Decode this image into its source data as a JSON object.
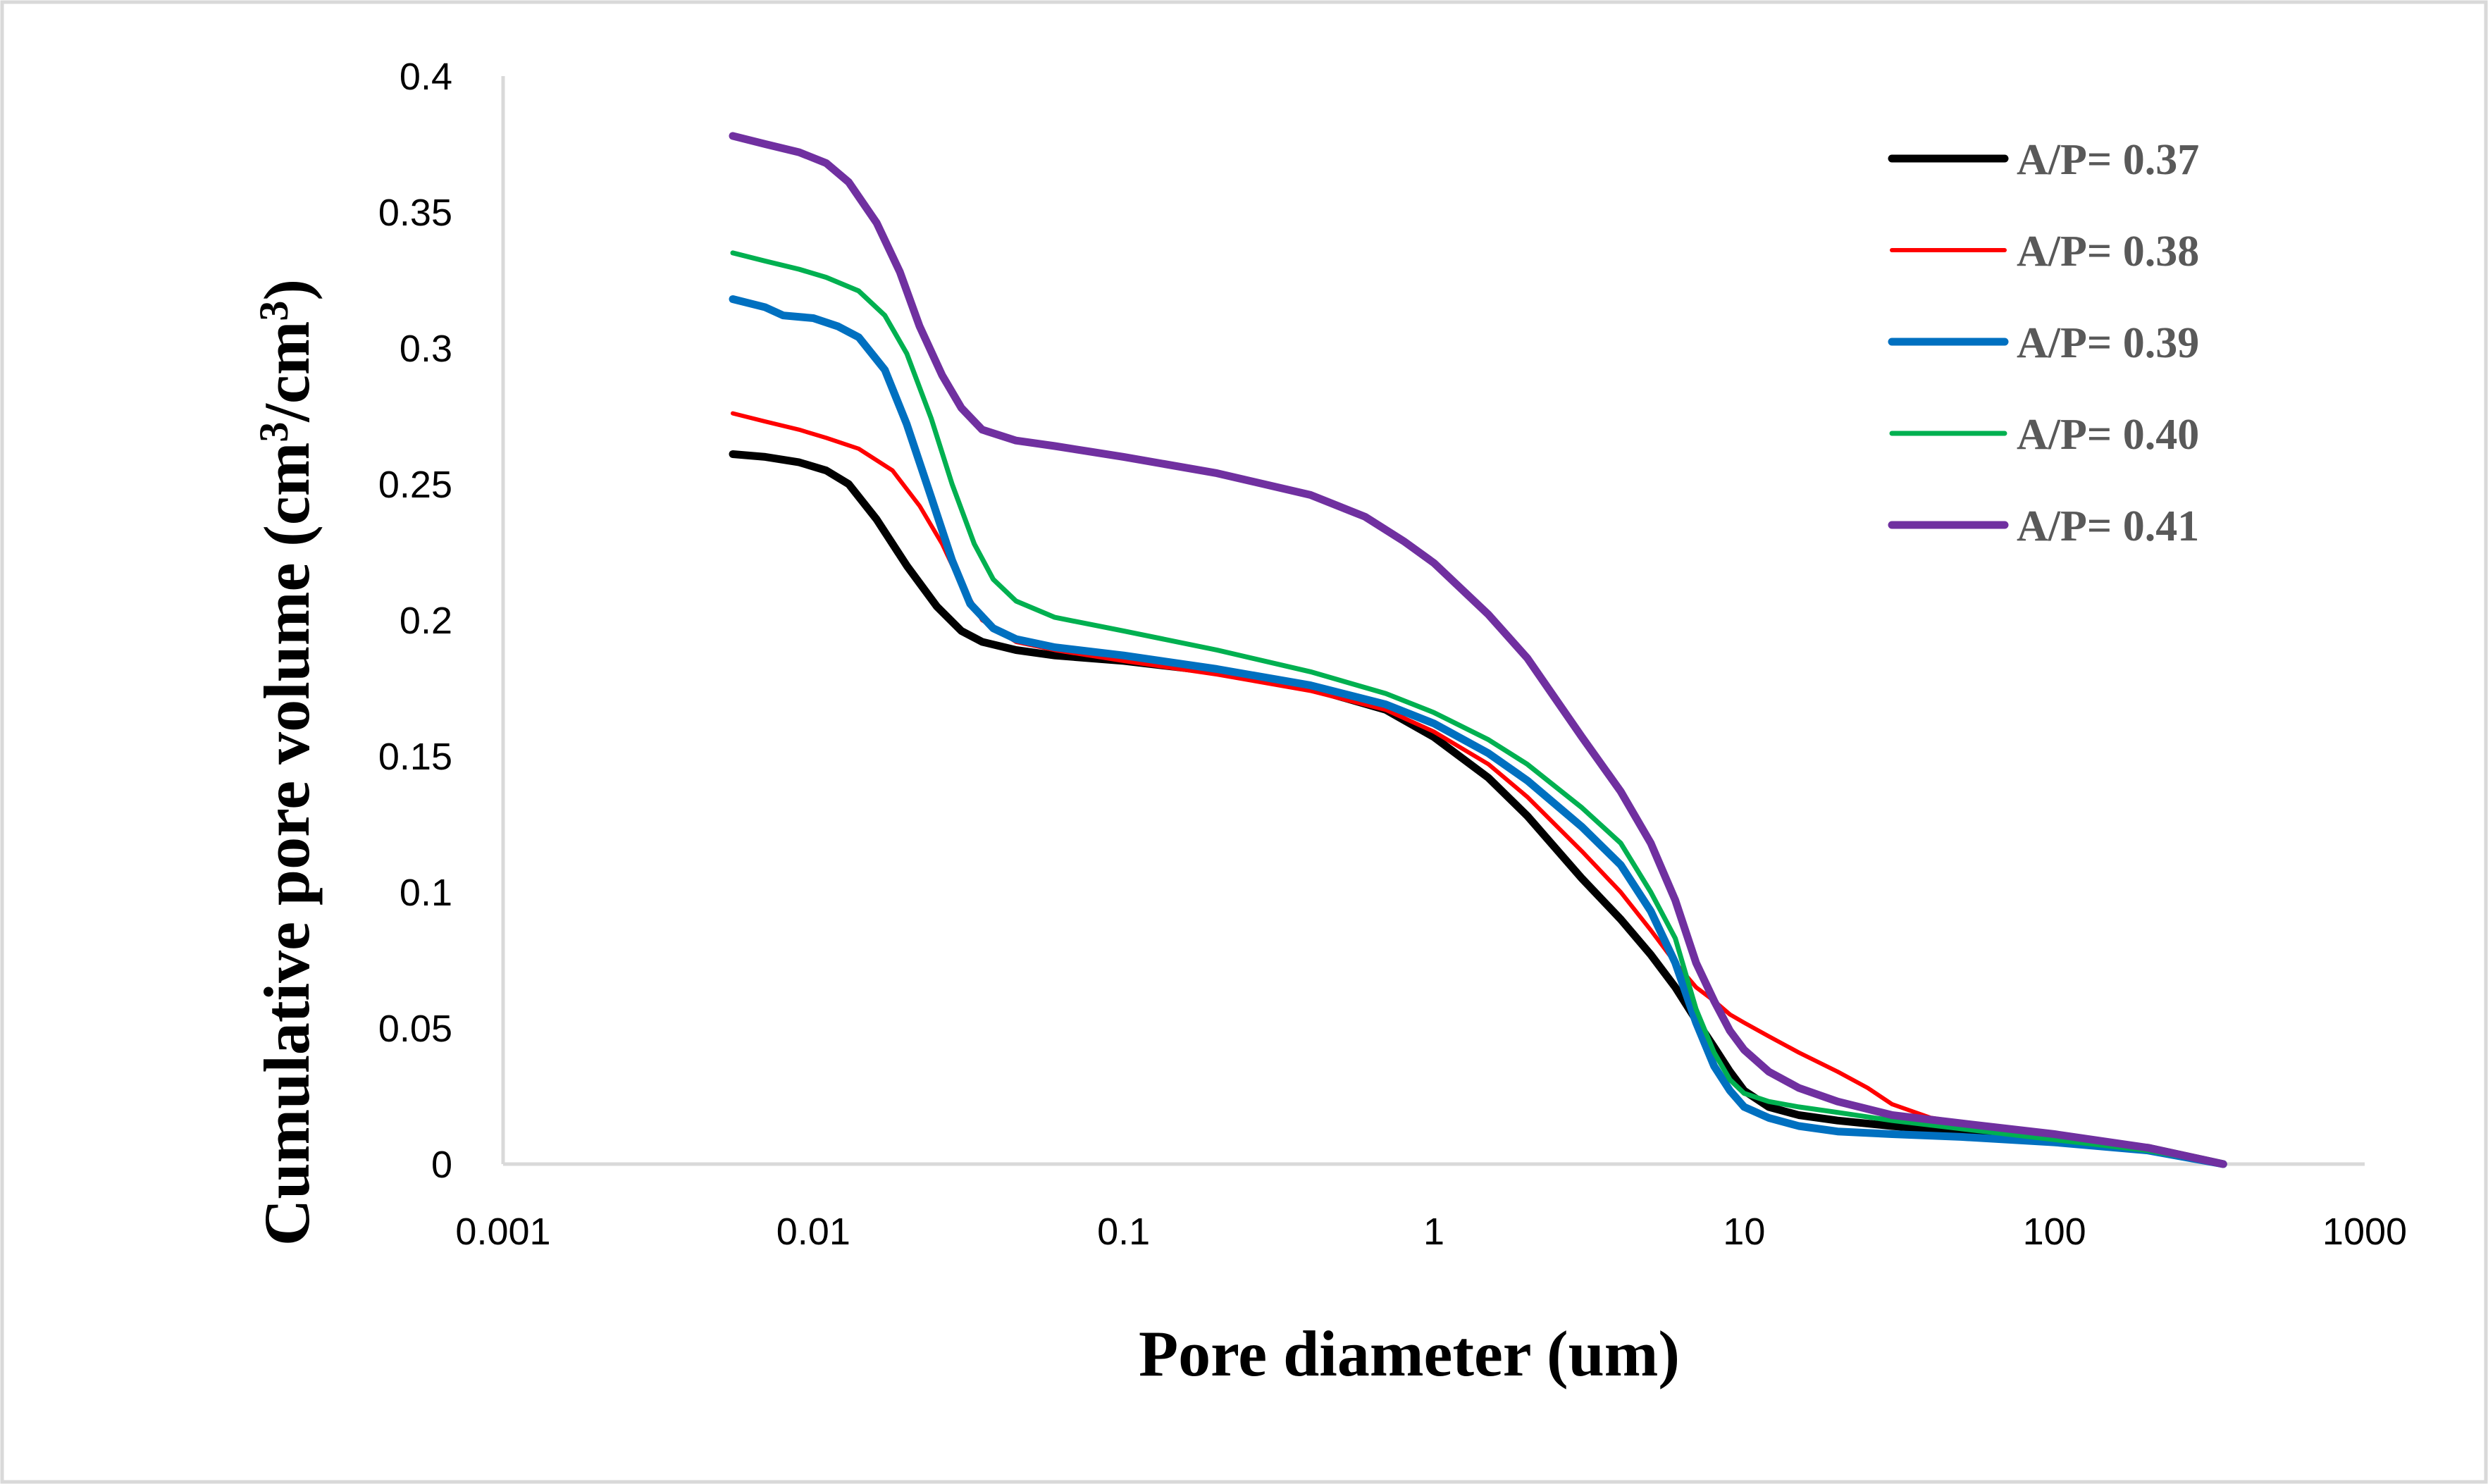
{
  "chart_data": {
    "type": "line",
    "title": "",
    "xlabel": "Pore diameter (um)",
    "ylabel": "Cumulative pore volume (cm³/cm³)",
    "ylabel_parts": {
      "a": "Cumulative pore volume (cm",
      "sup1": "3",
      "b": "/cm",
      "sup2": "3",
      "c": ")"
    },
    "xscale": "log",
    "xlim": [
      0.001,
      1000
    ],
    "ylim": [
      0,
      0.4
    ],
    "grid": false,
    "legend_position": "top-right",
    "x_tick_labels": [
      "0.001",
      "0.01",
      "0.1",
      "1",
      "10",
      "100",
      "1000"
    ],
    "y_tick_labels": [
      "0",
      "0.05",
      "0.1",
      "0.15",
      "0.2",
      "0.25",
      "0.3",
      "0.35",
      "0.4"
    ],
    "series": [
      {
        "name": "A/P=   0.37",
        "color": "#000000",
        "points": [
          [
            0.0055,
            0.261
          ],
          [
            0.007,
            0.26
          ],
          [
            0.009,
            0.258
          ],
          [
            0.011,
            0.255
          ],
          [
            0.013,
            0.25
          ],
          [
            0.016,
            0.237
          ],
          [
            0.02,
            0.22
          ],
          [
            0.025,
            0.205
          ],
          [
            0.03,
            0.196
          ],
          [
            0.035,
            0.192
          ],
          [
            0.045,
            0.189
          ],
          [
            0.06,
            0.187
          ],
          [
            0.1,
            0.185
          ],
          [
            0.2,
            0.181
          ],
          [
            0.4,
            0.175
          ],
          [
            0.7,
            0.167
          ],
          [
            1.0,
            0.157
          ],
          [
            1.5,
            0.142
          ],
          [
            2.0,
            0.128
          ],
          [
            3.0,
            0.105
          ],
          [
            4.0,
            0.09
          ],
          [
            5.0,
            0.077
          ],
          [
            6.0,
            0.065
          ],
          [
            7.0,
            0.053
          ],
          [
            8.0,
            0.043
          ],
          [
            9.0,
            0.034
          ],
          [
            10.0,
            0.027
          ],
          [
            12.0,
            0.021
          ],
          [
            15.0,
            0.018
          ],
          [
            20.0,
            0.016
          ],
          [
            30.0,
            0.014
          ],
          [
            50.0,
            0.012
          ],
          [
            100.0,
            0.009
          ],
          [
            200.0,
            0.006
          ],
          [
            350.0,
            0.0
          ]
        ]
      },
      {
        "name": "A/P=   0.38",
        "color": "#ff0000",
        "points": [
          [
            0.0055,
            0.276
          ],
          [
            0.007,
            0.273
          ],
          [
            0.009,
            0.27
          ],
          [
            0.011,
            0.267
          ],
          [
            0.014,
            0.263
          ],
          [
            0.018,
            0.255
          ],
          [
            0.022,
            0.242
          ],
          [
            0.026,
            0.228
          ],
          [
            0.03,
            0.213
          ],
          [
            0.035,
            0.2
          ],
          [
            0.045,
            0.192
          ],
          [
            0.06,
            0.189
          ],
          [
            0.1,
            0.185
          ],
          [
            0.2,
            0.18
          ],
          [
            0.4,
            0.174
          ],
          [
            0.7,
            0.167
          ],
          [
            1.0,
            0.159
          ],
          [
            1.5,
            0.147
          ],
          [
            2.0,
            0.135
          ],
          [
            3.0,
            0.115
          ],
          [
            4.0,
            0.1
          ],
          [
            5.0,
            0.086
          ],
          [
            6.0,
            0.074
          ],
          [
            7.0,
            0.065
          ],
          [
            8.0,
            0.06
          ],
          [
            9.0,
            0.055
          ],
          [
            10.0,
            0.052
          ],
          [
            12.0,
            0.047
          ],
          [
            15.0,
            0.041
          ],
          [
            20.0,
            0.034
          ],
          [
            25.0,
            0.028
          ],
          [
            30.0,
            0.022
          ],
          [
            40.0,
            0.017
          ],
          [
            60.0,
            0.014
          ],
          [
            100.0,
            0.011
          ],
          [
            200.0,
            0.006
          ],
          [
            350.0,
            0.0
          ]
        ]
      },
      {
        "name": "A/P=   0.39",
        "color": "#0070c0",
        "points": [
          [
            0.0055,
            0.318
          ],
          [
            0.007,
            0.315
          ],
          [
            0.008,
            0.312
          ],
          [
            0.01,
            0.311
          ],
          [
            0.012,
            0.308
          ],
          [
            0.014,
            0.304
          ],
          [
            0.017,
            0.292
          ],
          [
            0.02,
            0.272
          ],
          [
            0.024,
            0.245
          ],
          [
            0.028,
            0.222
          ],
          [
            0.032,
            0.206
          ],
          [
            0.038,
            0.197
          ],
          [
            0.045,
            0.193
          ],
          [
            0.06,
            0.19
          ],
          [
            0.1,
            0.187
          ],
          [
            0.2,
            0.182
          ],
          [
            0.4,
            0.176
          ],
          [
            0.7,
            0.169
          ],
          [
            1.0,
            0.162
          ],
          [
            1.5,
            0.151
          ],
          [
            2.0,
            0.141
          ],
          [
            3.0,
            0.124
          ],
          [
            4.0,
            0.11
          ],
          [
            5.0,
            0.093
          ],
          [
            6.0,
            0.074
          ],
          [
            7.0,
            0.052
          ],
          [
            8.0,
            0.036
          ],
          [
            9.0,
            0.027
          ],
          [
            10.0,
            0.021
          ],
          [
            12.0,
            0.017
          ],
          [
            15.0,
            0.014
          ],
          [
            20.0,
            0.012
          ],
          [
            30.0,
            0.011
          ],
          [
            50.0,
            0.01
          ],
          [
            100.0,
            0.008
          ],
          [
            200.0,
            0.005
          ],
          [
            350.0,
            0.0
          ]
        ]
      },
      {
        "name": "A/P=   0.40",
        "color": "#00b050",
        "points": [
          [
            0.0055,
            0.335
          ],
          [
            0.007,
            0.332
          ],
          [
            0.009,
            0.329
          ],
          [
            0.011,
            0.326
          ],
          [
            0.014,
            0.321
          ],
          [
            0.017,
            0.312
          ],
          [
            0.02,
            0.298
          ],
          [
            0.024,
            0.274
          ],
          [
            0.028,
            0.25
          ],
          [
            0.033,
            0.228
          ],
          [
            0.038,
            0.215
          ],
          [
            0.045,
            0.207
          ],
          [
            0.06,
            0.201
          ],
          [
            0.1,
            0.196
          ],
          [
            0.2,
            0.189
          ],
          [
            0.4,
            0.181
          ],
          [
            0.7,
            0.173
          ],
          [
            1.0,
            0.166
          ],
          [
            1.5,
            0.156
          ],
          [
            2.0,
            0.147
          ],
          [
            3.0,
            0.131
          ],
          [
            4.0,
            0.118
          ],
          [
            5.0,
            0.1
          ],
          [
            6.0,
            0.083
          ],
          [
            7.0,
            0.057
          ],
          [
            8.0,
            0.041
          ],
          [
            9.0,
            0.031
          ],
          [
            10.0,
            0.026
          ],
          [
            12.0,
            0.023
          ],
          [
            15.0,
            0.021
          ],
          [
            20.0,
            0.019
          ],
          [
            30.0,
            0.016
          ],
          [
            50.0,
            0.013
          ],
          [
            100.0,
            0.009
          ],
          [
            200.0,
            0.005
          ],
          [
            350.0,
            0.0
          ]
        ]
      },
      {
        "name": "A/P=   0.41",
        "color": "#7030a0",
        "points": [
          [
            0.0055,
            0.378
          ],
          [
            0.007,
            0.375
          ],
          [
            0.009,
            0.372
          ],
          [
            0.011,
            0.368
          ],
          [
            0.013,
            0.361
          ],
          [
            0.016,
            0.346
          ],
          [
            0.019,
            0.328
          ],
          [
            0.022,
            0.308
          ],
          [
            0.026,
            0.29
          ],
          [
            0.03,
            0.278
          ],
          [
            0.035,
            0.27
          ],
          [
            0.045,
            0.266
          ],
          [
            0.06,
            0.264
          ],
          [
            0.1,
            0.26
          ],
          [
            0.2,
            0.254
          ],
          [
            0.4,
            0.246
          ],
          [
            0.6,
            0.238
          ],
          [
            0.8,
            0.229
          ],
          [
            1.0,
            0.221
          ],
          [
            1.5,
            0.202
          ],
          [
            2.0,
            0.186
          ],
          [
            3.0,
            0.157
          ],
          [
            4.0,
            0.137
          ],
          [
            5.0,
            0.118
          ],
          [
            6.0,
            0.097
          ],
          [
            7.0,
            0.074
          ],
          [
            8.0,
            0.06
          ],
          [
            9.0,
            0.049
          ],
          [
            10.0,
            0.042
          ],
          [
            12.0,
            0.034
          ],
          [
            15.0,
            0.028
          ],
          [
            20.0,
            0.023
          ],
          [
            30.0,
            0.018
          ],
          [
            50.0,
            0.015
          ],
          [
            100.0,
            0.011
          ],
          [
            200.0,
            0.006
          ],
          [
            350.0,
            0.0
          ]
        ]
      }
    ]
  }
}
